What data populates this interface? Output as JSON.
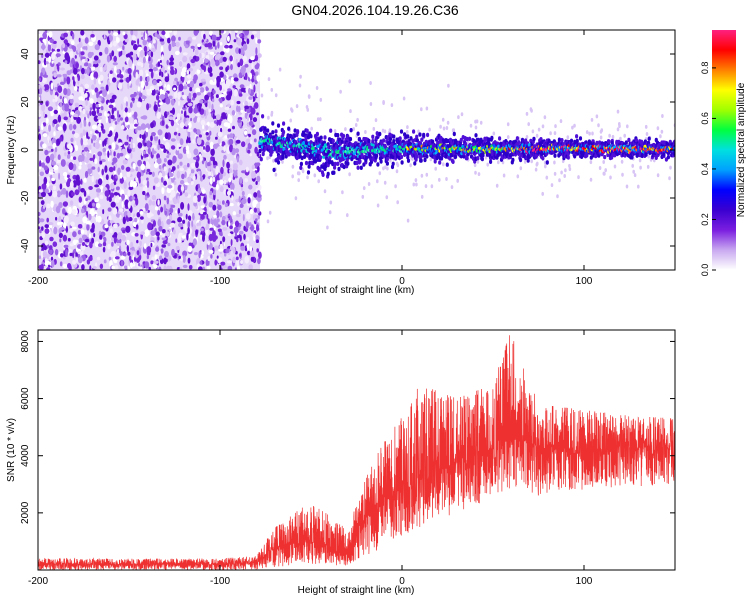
{
  "title": "GN04.2026.104.19.26.C36",
  "chart_data": [
    {
      "type": "heatmap",
      "title": "GN04.2026.104.19.26.C36",
      "xlabel": "Height of straight line (km)",
      "ylabel": "Frequency (Hz)",
      "xlim": [
        -200,
        150
      ],
      "ylim": [
        -50,
        50
      ],
      "xticks": [
        -200,
        -100,
        0,
        100
      ],
      "xtick_labels": [
        "-200",
        "-100",
        "0",
        "100"
      ],
      "yticks": [
        -40,
        -20,
        0,
        20,
        40
      ],
      "ytick_labels": [
        "-40",
        "-20",
        "0",
        "20",
        "40"
      ],
      "noise_region_x": [
        -200,
        -78
      ],
      "signal_band": [
        {
          "x": -78,
          "center_hz": 4,
          "halfwidth_hz": 4
        },
        {
          "x": -60,
          "center_hz": 2,
          "halfwidth_hz": 4
        },
        {
          "x": -40,
          "center_hz": -1,
          "halfwidth_hz": 5
        },
        {
          "x": -20,
          "center_hz": 0,
          "halfwidth_hz": 3.5
        },
        {
          "x": 0,
          "center_hz": 0.5,
          "halfwidth_hz": 3
        },
        {
          "x": 50,
          "center_hz": 0.5,
          "halfwidth_hz": 2.5
        },
        {
          "x": 100,
          "center_hz": 0.5,
          "halfwidth_hz": 2
        },
        {
          "x": 150,
          "center_hz": 0.5,
          "halfwidth_hz": 2
        }
      ],
      "colorbar": {
        "label": "Normalized spectral amplitude",
        "range": [
          0,
          0.95
        ],
        "ticks": [
          0,
          0.2,
          0.4,
          0.6,
          0.8
        ],
        "tick_labels": [
          "0.0",
          "0.2",
          "0.4",
          "0.6",
          "0.8"
        ],
        "colors": [
          "#ffffff",
          "#c9a8f0",
          "#7a1ee0",
          "#3a00d0",
          "#0000ff",
          "#00a0ff",
          "#00e0e0",
          "#00ff40",
          "#a0ff00",
          "#ffff00",
          "#ff8000",
          "#ff0000",
          "#ff2080"
        ]
      }
    },
    {
      "type": "line",
      "xlabel": "Height of straight line (km)",
      "ylabel": "SNR (10 * v/v)",
      "xlim": [
        -200,
        150
      ],
      "ylim": [
        0,
        8400
      ],
      "xticks": [
        -200,
        -100,
        0,
        100
      ],
      "xtick_labels": [
        "-200",
        "-100",
        "0",
        "100"
      ],
      "yticks": [
        2000,
        4000,
        6000,
        8000
      ],
      "ytick_labels": [
        "2000",
        "4000",
        "6000",
        "8000"
      ],
      "color": "#ee3030",
      "series": [
        {
          "name": "SNR",
          "envelope": [
            {
              "x": -200,
              "low": 0,
              "mean": 200,
              "high": 400
            },
            {
              "x": -150,
              "low": 0,
              "mean": 200,
              "high": 400
            },
            {
              "x": -100,
              "low": 0,
              "mean": 200,
              "high": 400
            },
            {
              "x": -80,
              "low": 0,
              "mean": 250,
              "high": 500
            },
            {
              "x": -70,
              "low": 100,
              "mean": 800,
              "high": 1500
            },
            {
              "x": -50,
              "low": 200,
              "mean": 1000,
              "high": 2400
            },
            {
              "x": -30,
              "low": 150,
              "mean": 700,
              "high": 1400
            },
            {
              "x": -20,
              "low": 500,
              "mean": 2000,
              "high": 3200
            },
            {
              "x": -10,
              "low": 800,
              "mean": 2400,
              "high": 4500
            },
            {
              "x": 0,
              "low": 1200,
              "mean": 2800,
              "high": 5500
            },
            {
              "x": 10,
              "low": 1500,
              "mean": 3200,
              "high": 6500
            },
            {
              "x": 30,
              "low": 2000,
              "mean": 3800,
              "high": 6000
            },
            {
              "x": 50,
              "low": 2500,
              "mean": 4200,
              "high": 6500
            },
            {
              "x": 60,
              "low": 2800,
              "mean": 4800,
              "high": 8400
            },
            {
              "x": 75,
              "low": 2600,
              "mean": 4300,
              "high": 5800
            },
            {
              "x": 100,
              "low": 2800,
              "mean": 4200,
              "high": 5600
            },
            {
              "x": 125,
              "low": 2900,
              "mean": 4300,
              "high": 5400
            },
            {
              "x": 150,
              "low": 3000,
              "mean": 4300,
              "high": 5300
            }
          ]
        }
      ]
    }
  ]
}
